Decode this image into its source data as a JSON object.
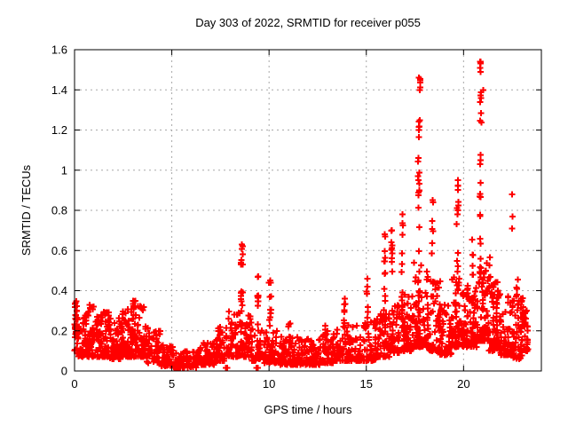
{
  "chart_data": {
    "type": "scatter",
    "title": "Day 303 of 2022, SRMTID for receiver p055",
    "xlabel": "GPS time / hours",
    "ylabel": "SRMTID / TECUs",
    "xlim": [
      0,
      24
    ],
    "ylim": [
      0,
      1.6
    ],
    "x_ticks": [
      0,
      5,
      10,
      15,
      20
    ],
    "x_tick_labels": [
      "0",
      "5",
      "10",
      "15",
      "20"
    ],
    "y_ticks": [
      0,
      0.2,
      0.4,
      0.6,
      0.8,
      1.0,
      1.2,
      1.4,
      1.6
    ],
    "y_tick_labels": [
      "0",
      "0.2",
      "0.4",
      "0.6",
      "0.8",
      "1",
      "1.2",
      "1.4",
      "1.6"
    ],
    "grid": true,
    "legend": "none",
    "marker": "plus",
    "marker_color": "#ff0000",
    "grid_color": "#a8a8a8",
    "border_color": "#000000",
    "seed": 303,
    "bands": [
      {
        "x0": 0.0,
        "x1": 0.12,
        "n": 28,
        "ymin": 0.09,
        "ymax": 0.35,
        "skew": 1.0
      },
      {
        "x0": 0.1,
        "x1": 0.6,
        "n": 55,
        "ymin": 0.07,
        "ymax": 0.28,
        "skew": 1.8
      },
      {
        "x0": 0.6,
        "x1": 1.2,
        "n": 70,
        "ymin": 0.07,
        "ymax": 0.33,
        "skew": 2.0
      },
      {
        "x0": 1.2,
        "x1": 1.8,
        "n": 70,
        "ymin": 0.07,
        "ymax": 0.3,
        "skew": 2.0
      },
      {
        "x0": 1.8,
        "x1": 2.4,
        "n": 65,
        "ymin": 0.06,
        "ymax": 0.27,
        "skew": 2.0
      },
      {
        "x0": 2.4,
        "x1": 3.0,
        "n": 70,
        "ymin": 0.07,
        "ymax": 0.32,
        "skew": 2.0
      },
      {
        "x0": 3.0,
        "x1": 3.7,
        "n": 75,
        "ymin": 0.07,
        "ymax": 0.35,
        "skew": 2.2
      },
      {
        "x0": 3.7,
        "x1": 4.4,
        "n": 55,
        "ymin": 0.04,
        "ymax": 0.22,
        "skew": 2.0
      },
      {
        "x0": 4.4,
        "x1": 5.1,
        "n": 55,
        "ymin": 0.025,
        "ymax": 0.13,
        "skew": 1.8
      },
      {
        "x0": 5.1,
        "x1": 6.3,
        "n": 85,
        "ymin": 0.015,
        "ymax": 0.1,
        "skew": 1.6
      },
      {
        "x0": 6.3,
        "x1": 7.3,
        "n": 75,
        "ymin": 0.03,
        "ymax": 0.14,
        "skew": 1.8
      },
      {
        "x0": 7.3,
        "x1": 7.9,
        "n": 50,
        "ymin": 0.05,
        "ymax": 0.22,
        "skew": 1.8
      },
      {
        "x0": 7.9,
        "x1": 8.5,
        "n": 55,
        "ymin": 0.07,
        "ymax": 0.3,
        "skew": 1.8
      },
      {
        "x0": 8.5,
        "x1": 9.1,
        "n": 55,
        "ymin": 0.07,
        "ymax": 0.28,
        "skew": 2.0
      },
      {
        "x0": 9.1,
        "x1": 9.7,
        "n": 45,
        "ymin": 0.05,
        "ymax": 0.22,
        "skew": 2.0
      },
      {
        "x0": 9.7,
        "x1": 10.5,
        "n": 65,
        "ymin": 0.04,
        "ymax": 0.2,
        "skew": 2.0
      },
      {
        "x0": 10.5,
        "x1": 11.5,
        "n": 80,
        "ymin": 0.03,
        "ymax": 0.17,
        "skew": 2.0
      },
      {
        "x0": 11.5,
        "x1": 12.7,
        "n": 95,
        "ymin": 0.03,
        "ymax": 0.16,
        "skew": 2.0
      },
      {
        "x0": 12.7,
        "x1": 13.4,
        "n": 60,
        "ymin": 0.04,
        "ymax": 0.2,
        "skew": 2.0
      },
      {
        "x0": 13.4,
        "x1": 14.4,
        "n": 80,
        "ymin": 0.05,
        "ymax": 0.23,
        "skew": 2.0
      },
      {
        "x0": 14.4,
        "x1": 15.5,
        "n": 85,
        "ymin": 0.05,
        "ymax": 0.25,
        "skew": 2.0
      },
      {
        "x0": 15.5,
        "x1": 16.2,
        "n": 60,
        "ymin": 0.07,
        "ymax": 0.3,
        "skew": 2.0
      },
      {
        "x0": 16.2,
        "x1": 16.7,
        "n": 50,
        "ymin": 0.09,
        "ymax": 0.33,
        "skew": 2.0
      },
      {
        "x0": 16.7,
        "x1": 17.4,
        "n": 70,
        "ymin": 0.1,
        "ymax": 0.4,
        "skew": 2.2
      },
      {
        "x0": 17.4,
        "x1": 18.2,
        "n": 100,
        "ymin": 0.12,
        "ymax": 0.55,
        "skew": 2.2
      },
      {
        "x0": 18.2,
        "x1": 18.8,
        "n": 60,
        "ymin": 0.1,
        "ymax": 0.45,
        "skew": 2.2
      },
      {
        "x0": 18.8,
        "x1": 19.4,
        "n": 50,
        "ymin": 0.08,
        "ymax": 0.35,
        "skew": 2.0
      },
      {
        "x0": 19.4,
        "x1": 20.1,
        "n": 75,
        "ymin": 0.12,
        "ymax": 0.48,
        "skew": 2.0
      },
      {
        "x0": 20.1,
        "x1": 20.7,
        "n": 70,
        "ymin": 0.12,
        "ymax": 0.45,
        "skew": 2.0
      },
      {
        "x0": 20.7,
        "x1": 21.3,
        "n": 85,
        "ymin": 0.15,
        "ymax": 0.55,
        "skew": 2.0
      },
      {
        "x0": 21.3,
        "x1": 21.9,
        "n": 70,
        "ymin": 0.1,
        "ymax": 0.45,
        "skew": 2.0
      },
      {
        "x0": 21.9,
        "x1": 22.5,
        "n": 60,
        "ymin": 0.08,
        "ymax": 0.38,
        "skew": 2.0
      },
      {
        "x0": 22.5,
        "x1": 23.1,
        "n": 65,
        "ymin": 0.06,
        "ymax": 0.38,
        "skew": 2.0
      },
      {
        "x0": 23.1,
        "x1": 23.35,
        "n": 22,
        "ymin": 0.1,
        "ymax": 0.33,
        "skew": 1.5
      }
    ],
    "columns": [
      {
        "x": 8.6,
        "dx": 0.12,
        "ymin": 0.28,
        "ymax": 0.56,
        "n": 12
      },
      {
        "x": 8.62,
        "dx": 0.06,
        "ymin": 0.58,
        "ymax": 0.64,
        "n": 3
      },
      {
        "x": 9.45,
        "dx": 0.1,
        "ymin": 0.2,
        "ymax": 0.47,
        "n": 9
      },
      {
        "x": 10.05,
        "dx": 0.14,
        "ymin": 0.2,
        "ymax": 0.45,
        "n": 10
      },
      {
        "x": 11.05,
        "dx": 0.1,
        "ymin": 0.14,
        "ymax": 0.3,
        "n": 6
      },
      {
        "x": 12.95,
        "dx": 0.14,
        "ymin": 0.14,
        "ymax": 0.27,
        "n": 6
      },
      {
        "x": 13.88,
        "dx": 0.12,
        "ymin": 0.18,
        "ymax": 0.35,
        "n": 7
      },
      {
        "x": 15.05,
        "dx": 0.1,
        "ymin": 0.22,
        "ymax": 0.46,
        "n": 8
      },
      {
        "x": 15.93,
        "dx": 0.1,
        "ymin": 0.28,
        "ymax": 0.68,
        "n": 11
      },
      {
        "x": 16.32,
        "dx": 0.08,
        "ymin": 0.32,
        "ymax": 0.7,
        "n": 9
      },
      {
        "x": 16.85,
        "dx": 0.1,
        "ymin": 0.38,
        "ymax": 0.76,
        "n": 7
      },
      {
        "x": 17.7,
        "dx": 0.1,
        "ymin": 0.55,
        "ymax": 1.08,
        "n": 13
      },
      {
        "x": 17.73,
        "dx": 0.07,
        "ymin": 1.15,
        "ymax": 1.31,
        "n": 6
      },
      {
        "x": 17.76,
        "dx": 0.05,
        "ymin": 1.36,
        "ymax": 1.47,
        "n": 4
      },
      {
        "x": 18.4,
        "dx": 0.1,
        "ymin": 0.42,
        "ymax": 0.85,
        "n": 8
      },
      {
        "x": 19.7,
        "dx": 0.1,
        "ymin": 0.48,
        "ymax": 0.95,
        "n": 13
      },
      {
        "x": 20.45,
        "dx": 0.1,
        "ymin": 0.42,
        "ymax": 0.66,
        "n": 6
      },
      {
        "x": 20.86,
        "dx": 0.09,
        "ymin": 0.55,
        "ymax": 1.12,
        "n": 13
      },
      {
        "x": 20.88,
        "dx": 0.06,
        "ymin": 1.16,
        "ymax": 1.41,
        "n": 7
      },
      {
        "x": 20.87,
        "dx": 0.04,
        "ymin": 1.48,
        "ymax": 1.55,
        "n": 3
      },
      {
        "x": 21.35,
        "dx": 0.1,
        "ymin": 0.42,
        "ymax": 0.6,
        "n": 5
      },
      {
        "x": 22.75,
        "dx": 0.12,
        "ymin": 0.28,
        "ymax": 0.46,
        "n": 7
      }
    ],
    "points": [
      [
        7.78,
        0.015
      ],
      [
        7.85,
        0.015
      ],
      [
        9.36,
        0.015
      ],
      [
        9.43,
        0.015
      ],
      [
        8.61,
        0.63
      ],
      [
        9.45,
        0.47
      ],
      [
        10.05,
        0.45
      ],
      [
        13.9,
        0.36
      ],
      [
        15.05,
        0.46
      ],
      [
        15.95,
        0.68
      ],
      [
        16.32,
        0.7
      ],
      [
        16.85,
        0.78
      ],
      [
        17.71,
        1.46
      ],
      [
        17.75,
        1.4
      ],
      [
        18.4,
        0.85
      ],
      [
        19.7,
        0.95
      ],
      [
        20.87,
        1.54
      ],
      [
        20.85,
        1.51
      ],
      [
        21.0,
        1.4
      ],
      [
        22.5,
        0.88
      ],
      [
        22.52,
        0.77
      ],
      [
        22.49,
        0.71
      ],
      [
        23.25,
        0.3
      ]
    ]
  }
}
